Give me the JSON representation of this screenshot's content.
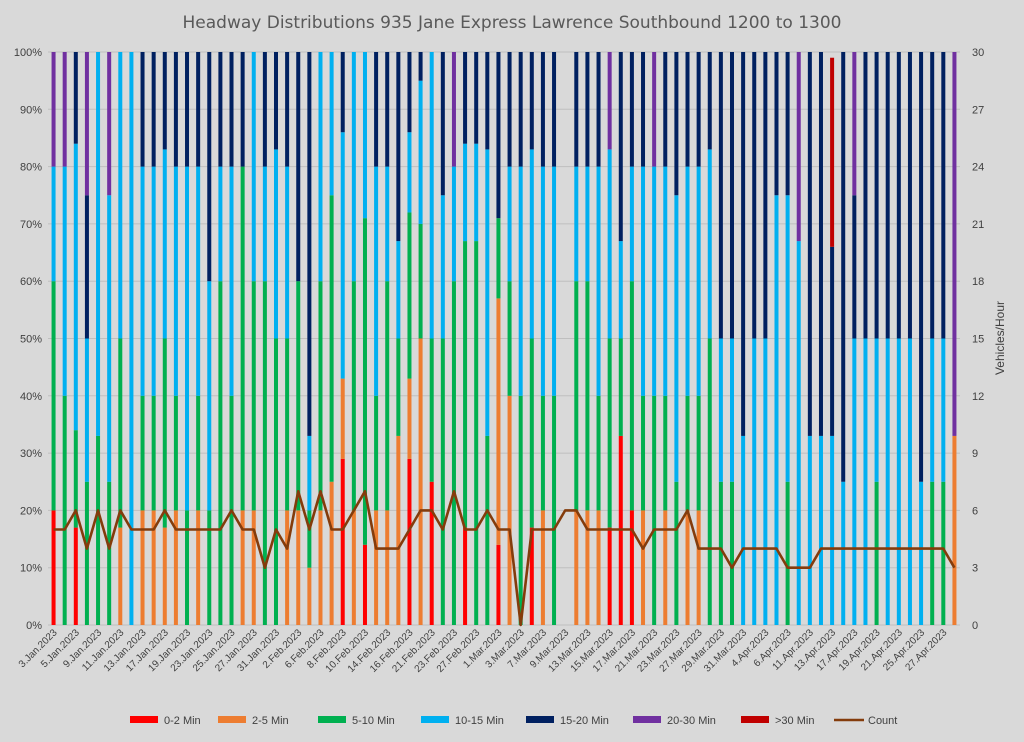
{
  "chart_data": {
    "type": "bar",
    "title": "Headway Distributions 935 Jane Express  Lawrence Southbound 1200 to 1300",
    "y_left_ticks": [
      "0%",
      "10%",
      "20%",
      "30%",
      "40%",
      "50%",
      "60%",
      "70%",
      "80%",
      "90%",
      "100%"
    ],
    "y_right_ticks": [
      "0",
      "3",
      "6",
      "9",
      "12",
      "15",
      "18",
      "21",
      "24",
      "27",
      "30"
    ],
    "y_right_label": "Vehicles/Hour",
    "ylim_left": [
      0,
      100
    ],
    "ylim_right": [
      0,
      30
    ],
    "x_tick_labels": [
      "3.Jan.2023",
      "5.Jan.2023",
      "9.Jan.2023",
      "11.Jan.2023",
      "13.Jan.2023",
      "17.Jan.2023",
      "19.Jan.2023",
      "23.Jan.2023",
      "25.Jan.2023",
      "27.Jan.2023",
      "31.Jan.2023",
      "2.Feb.2023",
      "6.Feb.2023",
      "8.Feb.2023",
      "10.Feb.2023",
      "14.Feb.2023",
      "16.Feb.2023",
      "21.Feb.2023",
      "23.Feb.2023",
      "27.Feb.2023",
      "1.Mar.2023",
      "3.Mar.2023",
      "7.Mar.2023",
      "9.Mar.2023",
      "13.Mar.2023",
      "15.Mar.2023",
      "17.Mar.2023",
      "21.Mar.2023",
      "23.Mar.2023",
      "27.Mar.2023",
      "29.Mar.2023",
      "31.Mar.2023",
      "4.Apr.2023",
      "6.Apr.2023",
      "11.Apr.2023",
      "13.Apr.2023",
      "17.Apr.2023",
      "19.Apr.2023",
      "21.Apr.2023",
      "25.Apr.2023",
      "27.Apr.2023"
    ],
    "series_colors": [
      "#ff0000",
      "#ed7d31",
      "#00b050",
      "#00b0f0",
      "#002060",
      "#7030a0",
      "#c00000"
    ],
    "count_color": "#843c0c",
    "grid": true,
    "legend_position": "bottom",
    "legend": [
      "0-2 Min",
      "2-5 Min",
      "5-10 Min",
      "10-15 Min",
      "15-20 Min",
      "20-30 Min",
      ">30 Min",
      "Count"
    ],
    "bars": [
      [
        20,
        0,
        40,
        20,
        0,
        20,
        0
      ],
      [
        0,
        0,
        40,
        40,
        0,
        20,
        0
      ],
      [
        17,
        0,
        17,
        50,
        17,
        0,
        0
      ],
      [
        0,
        0,
        25,
        25,
        25,
        25,
        0
      ],
      [
        0,
        0,
        33,
        67,
        0,
        0,
        0
      ],
      [
        0,
        0,
        25,
        50,
        0,
        25,
        0
      ],
      [
        0,
        17,
        33,
        50,
        0,
        0,
        0
      ],
      [
        0,
        0,
        0,
        100,
        0,
        0,
        0
      ],
      [
        0,
        20,
        20,
        40,
        20,
        0,
        0
      ],
      [
        0,
        20,
        20,
        40,
        20,
        0,
        0
      ],
      [
        0,
        17,
        33,
        33,
        17,
        0,
        0
      ],
      [
        0,
        20,
        20,
        40,
        20,
        0,
        0
      ],
      [
        0,
        0,
        20,
        60,
        20,
        0,
        0
      ],
      [
        0,
        20,
        20,
        40,
        20,
        0,
        0
      ],
      [
        0,
        0,
        20,
        40,
        40,
        0,
        0
      ],
      [
        0,
        0,
        60,
        20,
        20,
        0,
        0
      ],
      [
        0,
        0,
        40,
        40,
        20,
        0,
        0
      ],
      [
        0,
        20,
        60,
        0,
        20,
        0,
        0
      ],
      [
        0,
        20,
        40,
        40,
        0,
        0,
        0
      ],
      [
        0,
        0,
        60,
        20,
        20,
        0,
        0
      ],
      [
        0,
        0,
        50,
        33,
        17,
        0,
        0
      ],
      [
        0,
        20,
        30,
        30,
        20,
        0,
        0
      ],
      [
        0,
        20,
        40,
        0,
        40,
        0,
        0
      ],
      [
        0,
        10,
        10,
        13,
        67,
        0,
        0
      ],
      [
        0,
        20,
        40,
        40,
        0,
        0,
        0
      ],
      [
        0,
        25,
        50,
        25,
        0,
        0,
        0
      ],
      [
        29,
        14,
        0,
        43,
        14,
        0,
        0
      ],
      [
        0,
        20,
        40,
        40,
        0,
        0,
        0
      ],
      [
        14,
        0,
        57,
        29,
        0,
        0,
        0
      ],
      [
        0,
        20,
        20,
        40,
        20,
        0,
        0
      ],
      [
        0,
        20,
        40,
        20,
        20,
        0,
        0
      ],
      [
        0,
        33,
        17,
        17,
        33,
        0,
        0
      ],
      [
        29,
        14,
        29,
        14,
        14,
        0,
        0
      ],
      [
        0,
        50,
        20,
        25,
        5,
        0,
        0
      ],
      [
        25,
        0,
        25,
        50,
        0,
        0,
        0
      ],
      [
        0,
        0,
        50,
        25,
        25,
        0,
        0
      ],
      [
        0,
        0,
        60,
        20,
        0,
        20,
        0
      ],
      [
        17,
        0,
        50,
        17,
        17,
        0,
        0
      ],
      [
        0,
        0,
        67,
        17,
        17,
        0,
        0
      ],
      [
        0,
        0,
        33,
        50,
        17,
        0,
        0
      ],
      [
        14,
        43,
        14,
        0,
        29,
        0,
        0
      ],
      [
        0,
        40,
        20,
        20,
        20,
        0,
        0
      ],
      [
        0,
        0,
        40,
        40,
        20,
        0,
        0
      ],
      [
        17,
        0,
        33,
        33,
        17,
        0,
        0
      ],
      [
        0,
        20,
        20,
        40,
        20,
        0,
        0
      ],
      [
        0,
        0,
        40,
        40,
        20,
        0,
        0
      ],
      [
        0,
        0,
        0,
        0,
        0,
        0,
        0
      ],
      [
        0,
        20,
        40,
        20,
        20,
        0,
        0
      ],
      [
        0,
        20,
        40,
        20,
        20,
        0,
        0
      ],
      [
        0,
        20,
        20,
        40,
        20,
        0,
        0
      ],
      [
        17,
        0,
        33,
        33,
        0,
        17,
        0
      ],
      [
        33,
        0,
        17,
        17,
        33,
        0,
        0
      ],
      [
        20,
        0,
        40,
        20,
        20,
        0,
        0
      ],
      [
        0,
        20,
        20,
        40,
        20,
        0,
        0
      ],
      [
        0,
        0,
        40,
        40,
        0,
        20,
        0
      ],
      [
        0,
        20,
        20,
        40,
        20,
        0,
        0
      ],
      [
        0,
        0,
        25,
        50,
        25,
        0,
        0
      ],
      [
        0,
        20,
        20,
        40,
        20,
        0,
        0
      ],
      [
        0,
        20,
        20,
        40,
        20,
        0,
        0
      ],
      [
        0,
        0,
        50,
        33,
        17,
        0,
        0
      ],
      [
        0,
        0,
        25,
        25,
        50,
        0,
        0
      ],
      [
        0,
        0,
        25,
        25,
        50,
        0,
        0
      ],
      [
        0,
        0,
        0,
        33,
        67,
        0,
        0
      ],
      [
        0,
        0,
        0,
        50,
        50,
        0,
        0
      ],
      [
        0,
        0,
        0,
        50,
        50,
        0,
        0
      ],
      [
        0,
        0,
        0,
        75,
        25,
        0,
        0
      ],
      [
        0,
        0,
        25,
        50,
        25,
        0,
        0
      ],
      [
        0,
        0,
        0,
        67,
        0,
        33,
        0
      ],
      [
        0,
        0,
        0,
        33,
        67,
        0,
        0
      ],
      [
        0,
        0,
        0,
        33,
        67,
        0,
        0
      ],
      [
        0,
        0,
        0,
        33,
        33,
        0,
        33
      ],
      [
        0,
        0,
        0,
        25,
        75,
        0,
        0
      ],
      [
        0,
        0,
        0,
        50,
        25,
        25,
        0
      ],
      [
        0,
        0,
        0,
        50,
        50,
        0,
        0
      ],
      [
        0,
        0,
        25,
        25,
        50,
        0,
        0
      ],
      [
        0,
        0,
        0,
        50,
        50,
        0,
        0
      ],
      [
        0,
        0,
        0,
        50,
        50,
        0,
        0
      ],
      [
        0,
        0,
        0,
        50,
        50,
        0,
        0
      ],
      [
        0,
        0,
        0,
        25,
        75,
        0,
        0
      ],
      [
        0,
        0,
        25,
        25,
        50,
        0,
        0
      ],
      [
        0,
        0,
        25,
        25,
        50,
        0,
        0
      ],
      [
        0,
        33,
        0,
        0,
        0,
        67,
        0
      ]
    ],
    "count": [
      5,
      5,
      6,
      4,
      6,
      4,
      6,
      5,
      5,
      5,
      6,
      5,
      5,
      5,
      5,
      5,
      6,
      5,
      5,
      3,
      5,
      4,
      7,
      5,
      7,
      5,
      5,
      6,
      7,
      4,
      4,
      4,
      5,
      6,
      6,
      5,
      7,
      5,
      5,
      6,
      5,
      5,
      0,
      5,
      5,
      5,
      6,
      6,
      5,
      5,
      5,
      5,
      5,
      4,
      5,
      5,
      5,
      6,
      4,
      4,
      4,
      3,
      4,
      4,
      4,
      4,
      3,
      3,
      3,
      4,
      4,
      4,
      4,
      4,
      4,
      4,
      4,
      4,
      4,
      4,
      4,
      3
    ]
  }
}
